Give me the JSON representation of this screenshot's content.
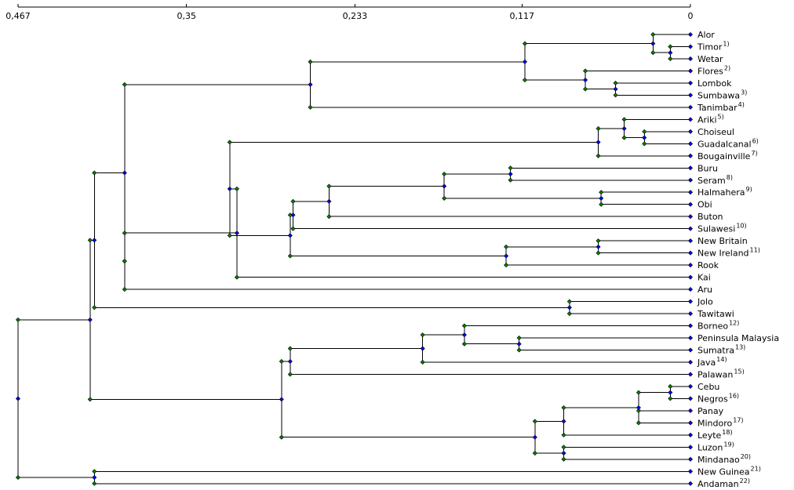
{
  "axis": {
    "max": 0.467,
    "ticks": [
      {
        "value": 0.467,
        "label": "0,467"
      },
      {
        "value": 0.35,
        "label": "0,35"
      },
      {
        "value": 0.233,
        "label": "0,233"
      },
      {
        "value": 0.117,
        "label": "0,117"
      },
      {
        "value": 0,
        "label": "0"
      }
    ]
  },
  "colors": {
    "line": "#000000",
    "leaf_node": "#0000ff",
    "join_dot": "#0000ff",
    "branch_dot": "#008000"
  },
  "leaves": [
    {
      "name": "Alor",
      "sup": ""
    },
    {
      "name": "Timor",
      "sup": "1)"
    },
    {
      "name": "Wetar",
      "sup": ""
    },
    {
      "name": "Flores",
      "sup": "2)"
    },
    {
      "name": "Lombok",
      "sup": ""
    },
    {
      "name": "Sumbawa",
      "sup": "3)"
    },
    {
      "name": "Tanimbar",
      "sup": "4)"
    },
    {
      "name": "Ariki",
      "sup": "5)"
    },
    {
      "name": "Choiseul",
      "sup": ""
    },
    {
      "name": "Guadalcanal",
      "sup": "6)"
    },
    {
      "name": "Bougainville",
      "sup": "7)"
    },
    {
      "name": "Buru",
      "sup": ""
    },
    {
      "name": "Seram",
      "sup": "8)"
    },
    {
      "name": "Halmahera",
      "sup": "9)"
    },
    {
      "name": "Obi",
      "sup": ""
    },
    {
      "name": "Buton",
      "sup": ""
    },
    {
      "name": "Sulawesi",
      "sup": "10)"
    },
    {
      "name": "New Britain",
      "sup": ""
    },
    {
      "name": "New Ireland",
      "sup": "11)"
    },
    {
      "name": "Rook",
      "sup": ""
    },
    {
      "name": "Kai",
      "sup": ""
    },
    {
      "name": "Aru",
      "sup": ""
    },
    {
      "name": "Jolo",
      "sup": ""
    },
    {
      "name": "Tawitawi",
      "sup": ""
    },
    {
      "name": "Borneo",
      "sup": "12)"
    },
    {
      "name": "Peninsula Malaysia",
      "sup": ""
    },
    {
      "name": "Sumatra",
      "sup": "13)"
    },
    {
      "name": "Java",
      "sup": "14)"
    },
    {
      "name": "Palawan",
      "sup": "15)"
    },
    {
      "name": "Cebu",
      "sup": ""
    },
    {
      "name": "Negros",
      "sup": "16)"
    },
    {
      "name": "Panay",
      "sup": ""
    },
    {
      "name": "Mindoro",
      "sup": "17)"
    },
    {
      "name": "Leyte",
      "sup": "18)"
    },
    {
      "name": "Luzon",
      "sup": "19)"
    },
    {
      "name": "Mindanao",
      "sup": "20)"
    },
    {
      "name": "New Guinea",
      "sup": "21)"
    },
    {
      "name": "Andaman",
      "sup": "22)"
    }
  ],
  "tree": {
    "h": 0.467,
    "c": [
      {
        "h": 0.417,
        "c": [
          {
            "h": 0.414,
            "c": [
              {
                "h": 0.393,
                "c": [
                  {
                    "h": 0.264,
                    "c": [
                      {
                        "h": 0.115,
                        "c": [
                          {
                            "h": 0.026,
                            "c": [
                              0,
                              {
                                "h": 0.014,
                                "c": [
                                  1,
                                  2
                                ]
                              }
                            ]
                          },
                          {
                            "h": 0.073,
                            "c": [
                              3,
                              {
                                "h": 0.052,
                                "c": [
                                  4,
                                  5
                                ]
                              }
                            ]
                          }
                        ]
                      },
                      6
                    ]
                  },
                  {
                    "h": 0.393,
                    "c": [
                      {
                        "h": 0.315,
                        "c": [
                          {
                            "h": 0.32,
                            "c": [
                              {
                                "h": 0.064,
                                "c": [
                                  {
                                    "h": 0.046,
                                    "c": [
                                      7,
                                      {
                                        "h": 0.032,
                                        "c": [
                                          8,
                                          9
                                        ]
                                      }
                                    ]
                                  },
                                  10
                                ]
                              },
                              {
                                "h": 0.278,
                                "c": [
                                  {
                                    "h": 0.276,
                                    "c": [
                                      {
                                        "h": 0.251,
                                        "c": [
                                          {
                                            "h": 0.171,
                                            "c": [
                                              {
                                                "h": 0.125,
                                                "c": [
                                                  11,
                                                  12
                                                ]
                                              },
                                              {
                                                "h": 0.062,
                                                "c": [
                                                  13,
                                                  14
                                                ]
                                              }
                                            ]
                                          },
                                          15
                                        ]
                                      },
                                      16
                                    ]
                                  },
                                  {
                                    "h": 0.128,
                                    "c": [
                                      {
                                        "h": 0.064,
                                        "c": [
                                          17,
                                          18
                                        ]
                                      },
                                      19
                                    ]
                                  }
                                ]
                              }
                            ]
                          },
                          20
                        ]
                      },
                      21
                    ]
                  }
                ]
              },
              {
                "h": 0.084,
                "c": [
                  22,
                  23
                ]
              }
            ]
          },
          {
            "h": 0.284,
            "c": [
              {
                "h": 0.278,
                "c": [
                  {
                    "h": 0.186,
                    "c": [
                      {
                        "h": 0.157,
                        "c": [
                          24,
                          {
                            "h": 0.119,
                            "c": [
                              25,
                              26
                            ]
                          }
                        ]
                      },
                      27
                    ]
                  },
                  28
                ]
              },
              {
                "h": 0.108,
                "c": [
                  {
                    "h": 0.088,
                    "c": [
                      {
                        "h": 0.036,
                        "c": [
                          {
                            "h": 0.014,
                            "c": [
                              29,
                              30
                            ]
                          },
                          31,
                          32
                        ]
                      },
                      33
                    ]
                  },
                  {
                    "h": 0.088,
                    "c": [
                      34,
                      35
                    ]
                  }
                ]
              }
            ]
          }
        ]
      },
      {
        "h": 0.414,
        "c": [
          36,
          37
        ]
      }
    ]
  }
}
